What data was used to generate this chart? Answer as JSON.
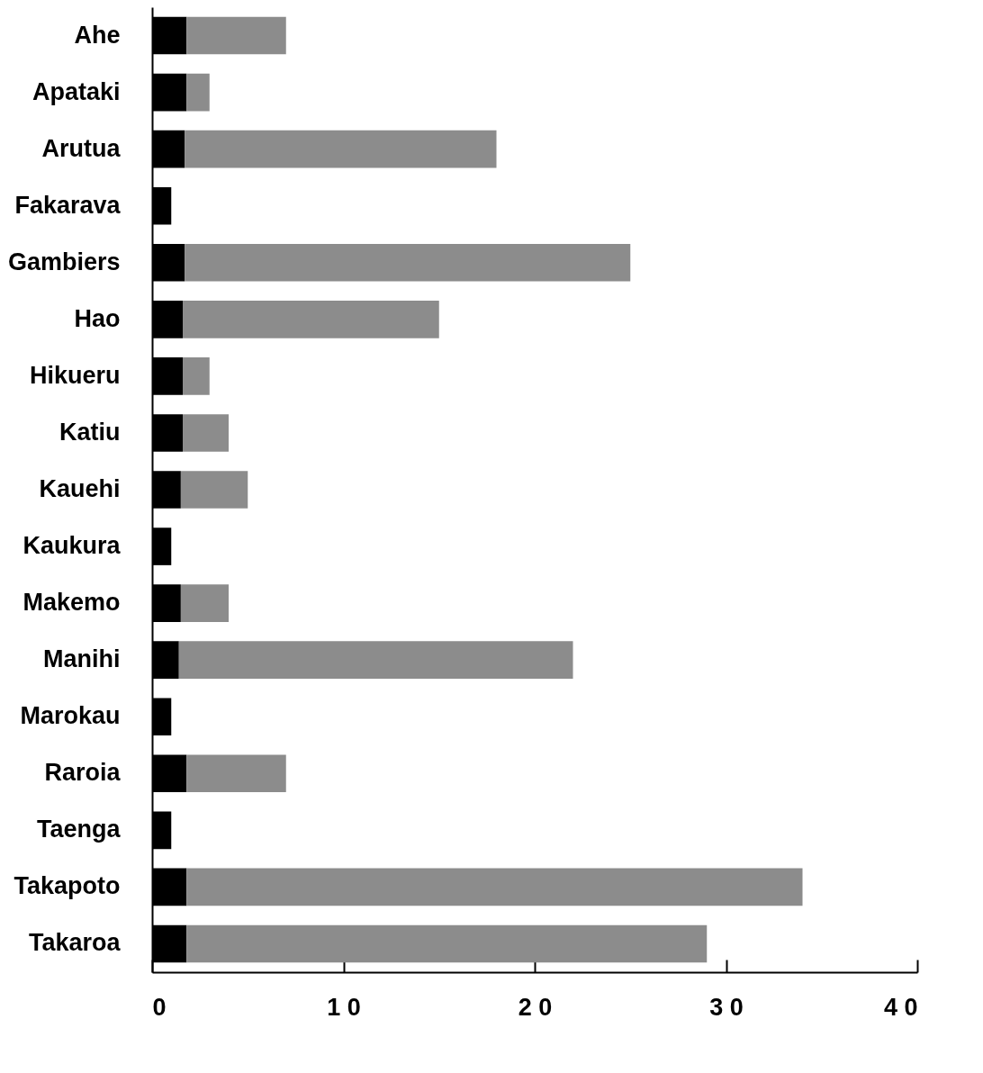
{
  "chart_data": {
    "type": "bar",
    "orientation": "horizontal",
    "stacked": true,
    "categories": [
      "Ahe",
      "Apataki",
      "Arutua",
      "Fakarava",
      "Gambiers",
      "Hao",
      "Hikueru",
      "Katiu",
      "Kauehi",
      "Kaukura",
      "Makemo",
      "Manihi",
      "Marokau",
      "Raroia",
      "Taenga",
      "Takapoto",
      "Takaroa"
    ],
    "series": [
      {
        "color": "#000000",
        "values": [
          1.8,
          1.8,
          1.7,
          1,
          1.7,
          1.6,
          1.6,
          1.6,
          1.5,
          1,
          1.5,
          1.4,
          1,
          1.8,
          1,
          1.8,
          1.8
        ]
      },
      {
        "color": "#8c8c8c",
        "values": [
          5.2,
          1.2,
          16.3,
          null,
          23.3,
          13.4,
          1.4,
          2.4,
          3.5,
          null,
          2.5,
          20.6,
          null,
          5.2,
          null,
          32.2,
          27.2
        ]
      }
    ],
    "xlim": [
      0,
      40
    ],
    "xticks": [
      0,
      10,
      20,
      30,
      40
    ],
    "grid": false
  }
}
